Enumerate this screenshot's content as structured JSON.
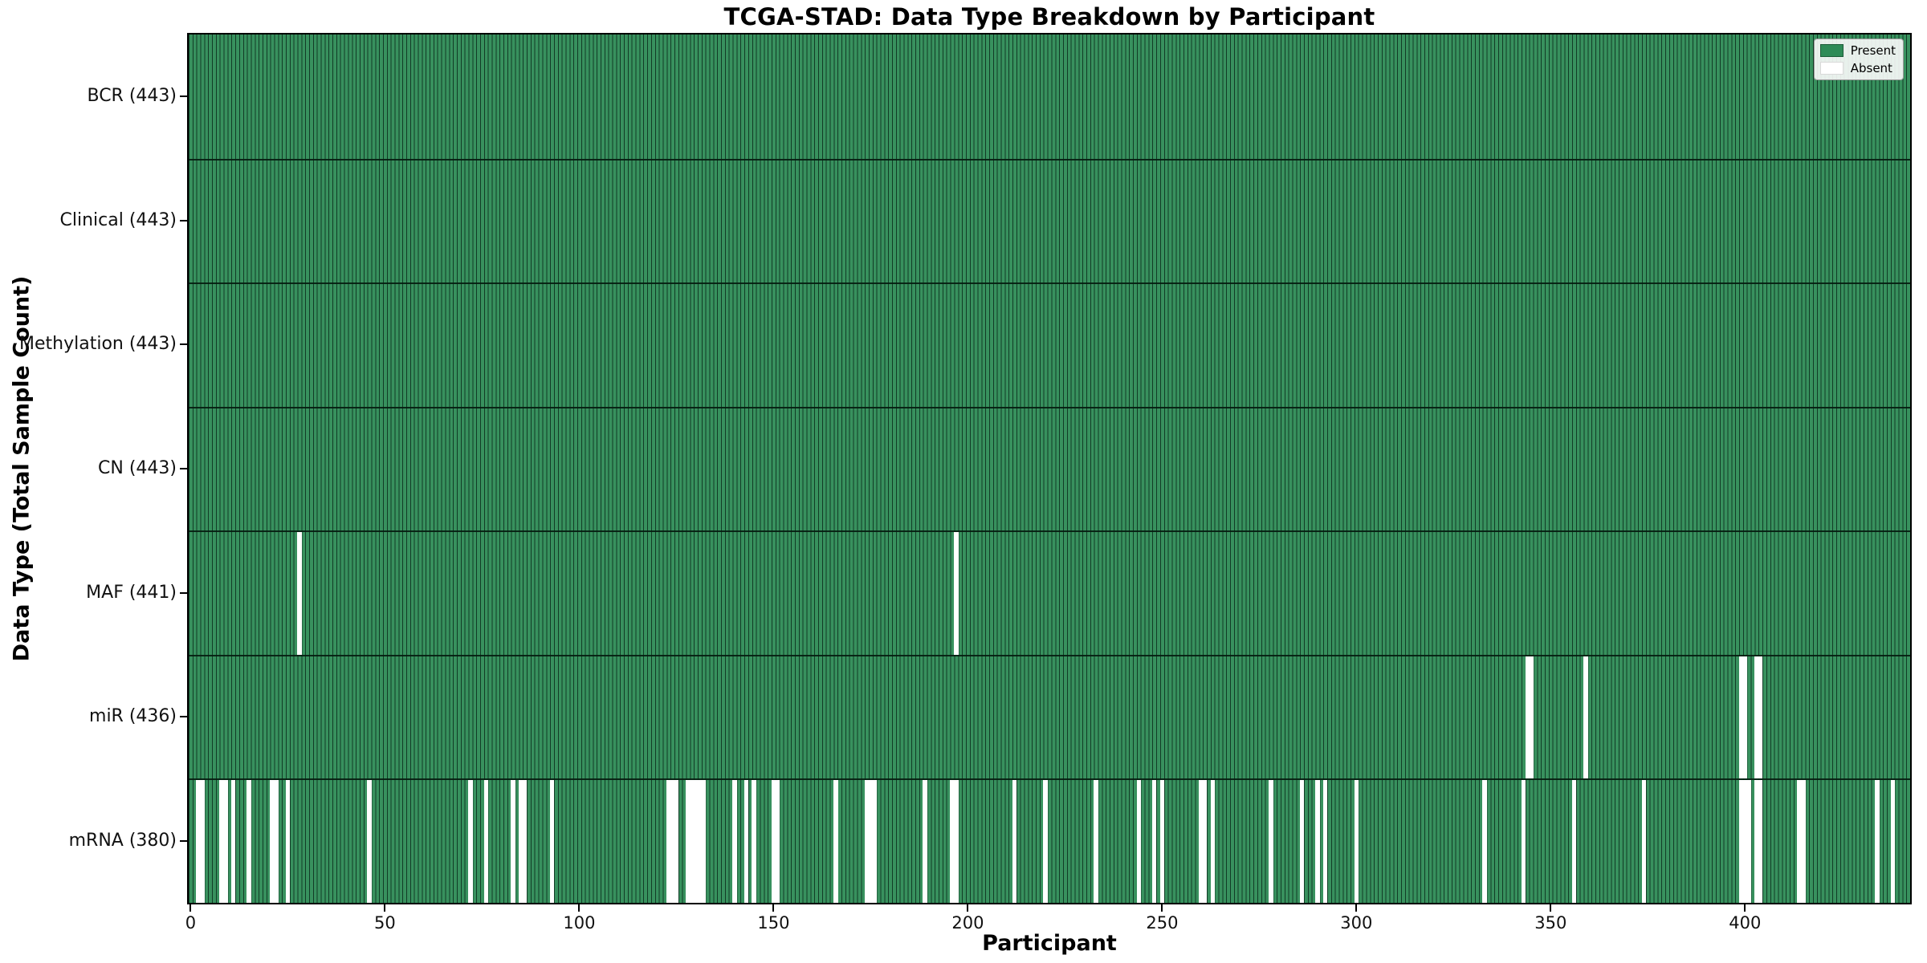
{
  "title": "TCGA-STAD: Data Type Breakdown by Participant",
  "chart_data": {
    "type": "heatmap",
    "title": "TCGA-STAD: Data Type Breakdown by Participant",
    "xlabel": "Participant",
    "ylabel": "Data Type (Total Sample Count)",
    "x_ticks": [
      0,
      50,
      100,
      150,
      200,
      250,
      300,
      350,
      400
    ],
    "xlim": [
      -0.5,
      442.5
    ],
    "n_participants": 443,
    "grid": false,
    "legend_position": "upper right",
    "legend": [
      {
        "label": "Present",
        "color": "#2e8b57"
      },
      {
        "label": "Absent",
        "color": "#ffffff"
      }
    ],
    "colors": {
      "present": "#2e8b57",
      "absent": "#ffffff",
      "bar_edge": "#17402a"
    },
    "rows": [
      {
        "label": "BCR (443)",
        "data_type": "BCR",
        "total": 443,
        "absent": []
      },
      {
        "label": "Clinical (443)",
        "data_type": "Clinical",
        "total": 443,
        "absent": []
      },
      {
        "label": "Methylation (443)",
        "data_type": "Methylation",
        "total": 443,
        "absent": []
      },
      {
        "label": "CN (443)",
        "data_type": "CN",
        "total": 443,
        "absent": []
      },
      {
        "label": "MAF (441)",
        "data_type": "MAF",
        "total": 441,
        "absent": [
          28,
          197
        ]
      },
      {
        "label": "miR (436)",
        "data_type": "miR",
        "total": 436,
        "absent": [
          344,
          345,
          359,
          399,
          400,
          403,
          404
        ]
      },
      {
        "label": "mRNA (380)",
        "data_type": "mRNA",
        "total": 380,
        "absent": [
          2,
          3,
          8,
          9,
          11,
          15,
          21,
          22,
          25,
          46,
          72,
          76,
          83,
          85,
          86,
          93,
          123,
          124,
          125,
          128,
          129,
          130,
          131,
          132,
          140,
          143,
          145,
          150,
          151,
          166,
          174,
          175,
          176,
          189,
          196,
          197,
          212,
          220,
          233,
          244,
          248,
          250,
          260,
          261,
          263,
          278,
          286,
          290,
          292,
          300,
          333,
          343,
          356,
          374,
          399,
          400,
          401,
          403,
          404,
          414,
          415,
          434,
          438
        ]
      }
    ]
  }
}
